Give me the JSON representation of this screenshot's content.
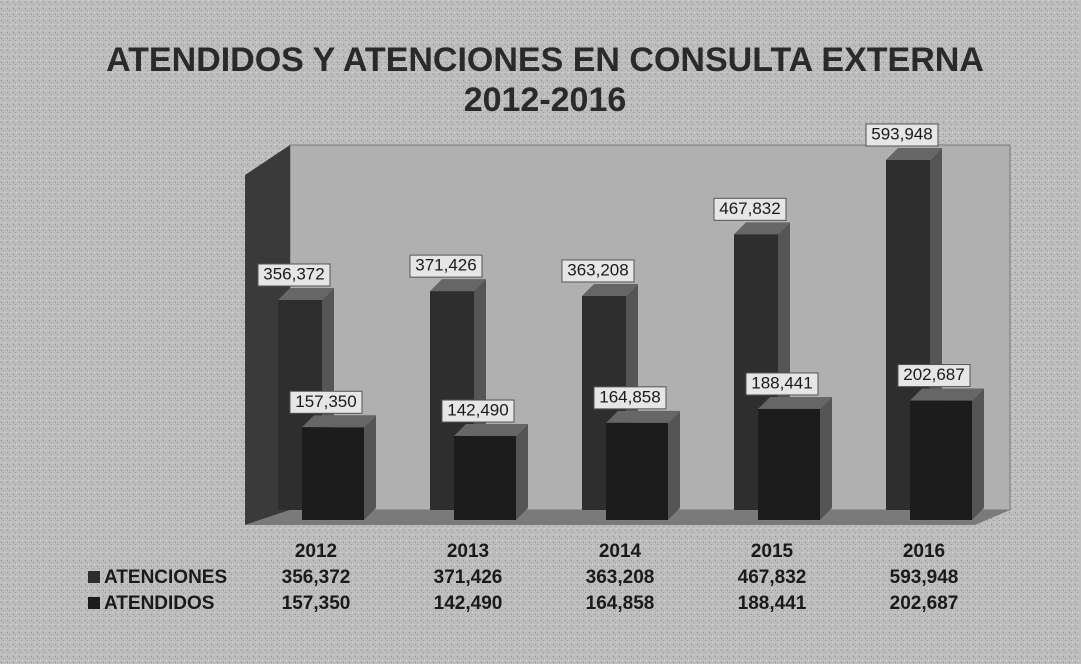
{
  "chart_data": {
    "type": "bar3d",
    "title": "ATENDIDOS Y ATENCIONES EN CONSULTA EXTERNA",
    "subtitle": "2012-2016",
    "categories": [
      "2012",
      "2013",
      "2014",
      "2015",
      "2016"
    ],
    "series": [
      {
        "name": "ATENCIONES",
        "color": "#2e2e2e",
        "values": [
          356372,
          371426,
          363208,
          467832,
          593948
        ],
        "value_labels": [
          "356,372",
          "371,426",
          "363,208",
          "467,832",
          "593,948"
        ]
      },
      {
        "name": "ATENDIDOS",
        "color": "#1c1c1c",
        "values": [
          157350,
          142490,
          164858,
          188441,
          202687
        ],
        "value_labels": [
          "157,350",
          "142,490",
          "164,858",
          "188,441",
          "202,687"
        ]
      }
    ]
  }
}
